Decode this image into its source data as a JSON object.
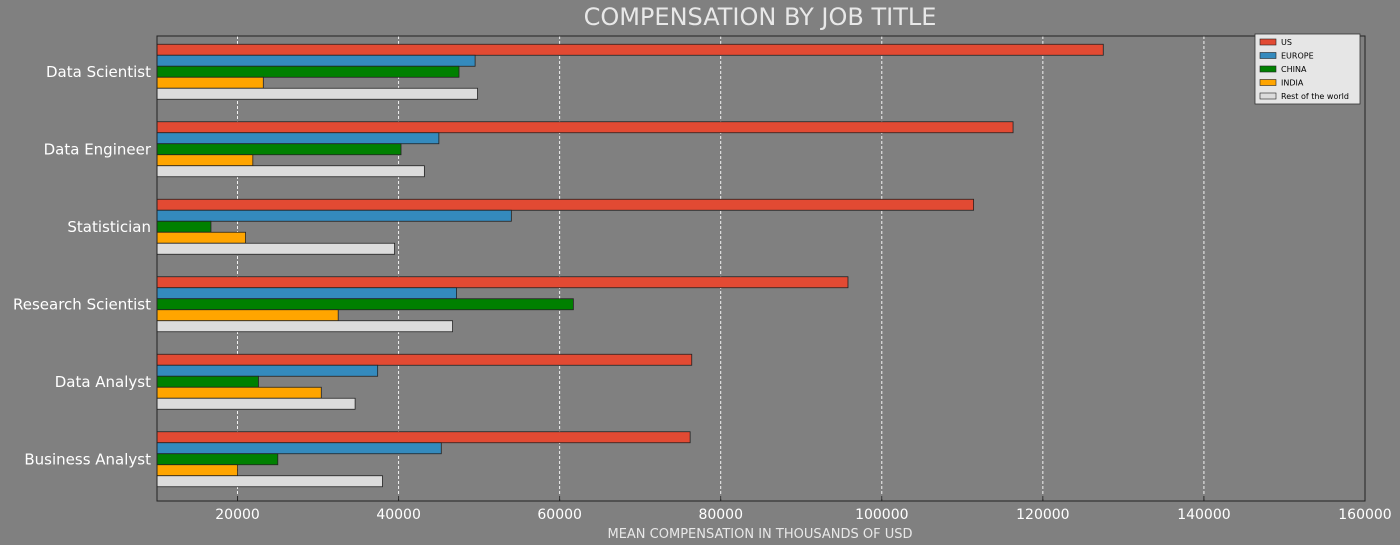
{
  "chart_data": {
    "type": "bar",
    "orientation": "horizontal",
    "title": "COMPENSATION BY JOB TITLE",
    "xlabel": "MEAN COMPENSATION IN THOUSANDS OF USD",
    "ylabel": "",
    "xlim": [
      10000,
      160000
    ],
    "xticks": [
      20000,
      40000,
      60000,
      80000,
      100000,
      120000,
      140000,
      160000
    ],
    "grid": "vertical-dashed",
    "legend_position": "top-right",
    "categories": [
      "Data Scientist",
      "Data Engineer",
      "Statistician",
      "Research Scientist",
      "Data Analyst",
      "Business Analyst"
    ],
    "series": [
      {
        "name": "US",
        "color": "#e24a33",
        "values": [
          127500,
          116300,
          111400,
          95800,
          76400,
          76200
        ]
      },
      {
        "name": "EUROPE",
        "color": "#348abd",
        "values": [
          49500,
          45000,
          54000,
          47200,
          37400,
          45300
        ]
      },
      {
        "name": "CHINA",
        "color": "#008000",
        "values": [
          47500,
          40300,
          16700,
          61700,
          22600,
          25000
        ]
      },
      {
        "name": "INDIA",
        "color": "#ffa500",
        "values": [
          23200,
          21900,
          21000,
          32500,
          30400,
          20000
        ]
      },
      {
        "name": "Rest of the world",
        "color": "#dcdcdc",
        "values": [
          49800,
          43200,
          39500,
          46700,
          34600,
          38000
        ]
      }
    ]
  }
}
